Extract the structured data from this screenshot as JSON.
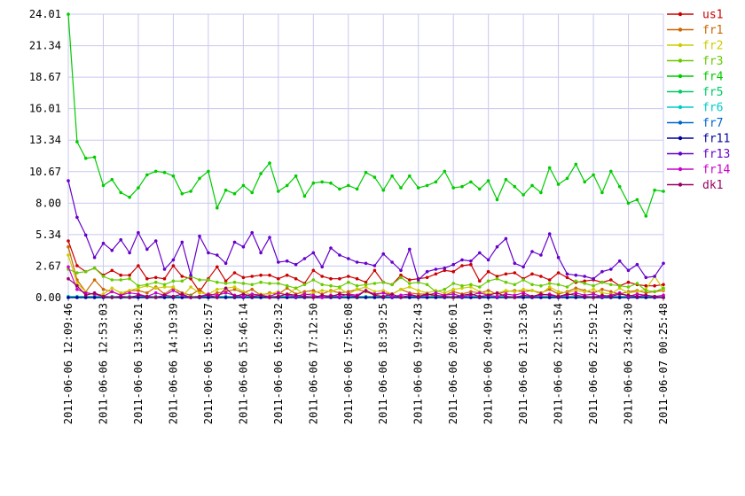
{
  "chart_data": {
    "type": "line",
    "title": "",
    "xlabel": "",
    "ylabel": "",
    "ylim": [
      0,
      24.01
    ],
    "grid": true,
    "legend_position": "right",
    "y_ticks": [
      "0.00",
      "2.67",
      "5.34",
      "8.00",
      "10.67",
      "13.34",
      "16.01",
      "18.67",
      "21.34",
      "24.01"
    ],
    "x_ticks": [
      "2011-06-06 12:09:46",
      "2011-06-06 12:53:03",
      "2011-06-06 13:36:21",
      "2011-06-06 14:19:39",
      "2011-06-06 15:02:57",
      "2011-06-06 15:46:14",
      "2011-06-06 16:29:32",
      "2011-06-06 17:12:50",
      "2011-06-06 17:56:08",
      "2011-06-06 18:39:25",
      "2011-06-06 19:22:43",
      "2011-06-06 20:06:01",
      "2011-06-06 20:49:19",
      "2011-06-06 21:32:36",
      "2011-06-06 22:15:54",
      "2011-06-06 22:59:12",
      "2011-06-06 23:42:30",
      "2011-06-07 00:25:48"
    ],
    "x_range": [
      "2011-06-06 12:09:46",
      "2011-06-07 00:25:48"
    ],
    "series": [
      {
        "name": "us1",
        "color": "#cc0000",
        "values": [
          4.8,
          2.7,
          2.2,
          2.5,
          1.9,
          2.3,
          1.9,
          1.9,
          2.7,
          1.6,
          1.7,
          1.6,
          2.7,
          1.8,
          1.6,
          0.5,
          1.6,
          2.6,
          1.4,
          2.1,
          1.7,
          1.8,
          1.9,
          1.9,
          1.6,
          1.9,
          1.6,
          1.2,
          2.3,
          1.8,
          1.6,
          1.6,
          1.8,
          1.6,
          1.3,
          2.3,
          1.3,
          1.1,
          1.9,
          1.5,
          1.6,
          1.7,
          2.0,
          2.3,
          2.2,
          2.7,
          2.8,
          1.4,
          2.2,
          1.8,
          2.0,
          2.1,
          1.6,
          2.0,
          1.8,
          1.5,
          2.1,
          1.7,
          1.3,
          1.4,
          1.5,
          1.3,
          1.5,
          1.0,
          1.3,
          1.1,
          1.0,
          1.0,
          1.1
        ]
      },
      {
        "name": "fr1",
        "color": "#cc6600",
        "values": [
          4.3,
          1.5,
          0.5,
          1.5,
          0.7,
          0.5,
          0.2,
          0.6,
          0.6,
          0.4,
          0.9,
          0.3,
          0.8,
          0.4,
          0.2,
          0.7,
          0.1,
          0.4,
          0.5,
          0.7,
          0.4,
          0.7,
          0.2,
          0.4,
          0.3,
          0.8,
          0.3,
          0.5,
          0.6,
          0.3,
          0.6,
          0.4,
          0.5,
          0.7,
          0.5,
          0.2,
          0.4,
          0.3,
          0.7,
          0.4,
          0.3,
          0.3,
          0.1,
          0.2,
          0.5,
          0.3,
          0.5,
          0.4,
          0.6,
          0.3,
          0.5,
          0.6,
          0.5,
          0.6,
          0.4,
          0.7,
          0.3,
          0.5,
          0.8,
          0.6,
          0.4,
          0.7,
          0.5,
          0.3,
          0.5,
          0.6,
          0.4,
          0.5,
          0.6
        ]
      },
      {
        "name": "fr2",
        "color": "#cccc00",
        "values": [
          3.6,
          1.2,
          0.5,
          0.2,
          0.3,
          0.8,
          0.4,
          0.6,
          0.8,
          1.0,
          0.8,
          0.9,
          0.9,
          0.1,
          0.9,
          0.4,
          0.3,
          0.7,
          0.8,
          0.9,
          0.5,
          0.2,
          0.3,
          0.3,
          0.5,
          0.2,
          0.8,
          0.2,
          0.4,
          0.6,
          0.5,
          0.8,
          0.3,
          0.7,
          0.9,
          0.5,
          0.6,
          0.3,
          0.7,
          0.9,
          0.6,
          0.4,
          0.6,
          0.4,
          0.7,
          0.8,
          0.9,
          0.5,
          0.3,
          0.4,
          0.6,
          0.5,
          0.7,
          0.6,
          0.3,
          0.9,
          0.5,
          0.4,
          0.6,
          0.5,
          0.7,
          0.4,
          0.3,
          0.8,
          0.4,
          0.5,
          0.7,
          1.8,
          0.7
        ]
      },
      {
        "name": "fr3",
        "color": "#66cc00",
        "values": [
          2.4,
          2.1,
          2.2,
          2.5,
          1.8,
          1.5,
          1.5,
          1.6,
          1.0,
          1.1,
          1.3,
          1.1,
          1.4,
          1.4,
          1.8,
          1.5,
          1.5,
          1.3,
          1.2,
          1.3,
          1.2,
          1.1,
          1.3,
          1.2,
          1.2,
          1.0,
          0.8,
          1.1,
          1.5,
          1.1,
          1.0,
          0.9,
          1.3,
          1.0,
          1.1,
          1.2,
          1.3,
          1.1,
          1.7,
          1.2,
          1.3,
          1.1,
          0.5,
          0.7,
          1.2,
          1.0,
          1.1,
          0.9,
          1.4,
          1.6,
          1.3,
          1.1,
          1.5,
          1.1,
          1.0,
          1.2,
          1.1,
          0.9,
          1.4,
          1.2,
          1.0,
          1.3,
          1.1,
          1.0,
          0.9,
          1.2,
          0.6,
          0.5,
          0.8
        ]
      },
      {
        "name": "fr4",
        "color": "#00cc00",
        "values": [
          24.0,
          13.2,
          11.8,
          11.9,
          9.5,
          10.0,
          8.9,
          8.5,
          9.3,
          10.4,
          10.7,
          10.6,
          10.3,
          8.8,
          9.0,
          10.1,
          10.7,
          7.6,
          9.1,
          8.8,
          9.5,
          8.9,
          10.5,
          11.4,
          9.0,
          9.5,
          10.3,
          8.6,
          9.7,
          9.8,
          9.7,
          9.2,
          9.5,
          9.2,
          10.6,
          10.2,
          9.1,
          10.3,
          9.3,
          10.3,
          9.3,
          9.5,
          9.8,
          10.7,
          9.3,
          9.4,
          9.8,
          9.2,
          9.9,
          8.3,
          10.0,
          9.4,
          8.7,
          9.5,
          8.9,
          11.0,
          9.6,
          10.1,
          11.3,
          9.8,
          10.4,
          8.9,
          10.7,
          9.4,
          8.0,
          8.3,
          6.9,
          9.1,
          9.0
        ]
      },
      {
        "name": "fr5",
        "color": "#00cc66",
        "values": [
          0.1,
          0.1,
          0.1,
          0.1,
          0.1,
          0.1,
          0.1,
          0.1,
          0.1,
          0.1,
          0.1,
          0.1,
          0.1,
          0.1,
          0.1,
          0.1,
          0.1,
          0.1,
          0.1,
          0.1,
          0.1,
          0.1,
          0.1,
          0.1,
          0.1,
          0.1,
          0.1,
          0.1,
          0.1,
          0.1,
          0.1,
          0.1,
          0.1,
          0.1,
          0.1,
          0.1,
          0.1,
          0.1,
          0.1,
          0.1,
          0.1,
          0.1,
          0.1,
          0.1,
          0.1,
          0.1,
          0.1,
          0.1,
          0.1,
          0.1,
          0.1,
          0.1,
          0.1,
          0.1,
          0.1,
          0.1,
          0.1,
          0.1,
          0.1,
          0.1,
          0.1,
          0.1,
          0.1,
          0.1,
          0.1,
          0.1,
          0.1,
          0.1,
          0.1
        ]
      },
      {
        "name": "fr6",
        "color": "#00cccc",
        "values": [
          0.05,
          0.05,
          0.05,
          0.05,
          0.05,
          0.05,
          0.05,
          0.05,
          0.05,
          0.05,
          0.05,
          0.05,
          0.05,
          0.05,
          0.05,
          0.05,
          0.05,
          0.05,
          0.05,
          0.05,
          0.05,
          0.05,
          0.05,
          0.05,
          0.05,
          0.05,
          0.05,
          0.05,
          0.05,
          0.05,
          0.05,
          0.05,
          0.05,
          0.05,
          0.05,
          0.05,
          0.05,
          0.05,
          0.05,
          0.05,
          0.05,
          0.05,
          0.05,
          0.05,
          0.05,
          0.05,
          0.05,
          0.05,
          0.05,
          0.05,
          0.05,
          0.05,
          0.05,
          0.05,
          0.05,
          0.05,
          0.05,
          0.05,
          0.05,
          0.05,
          0.05,
          0.05,
          0.05,
          0.05,
          0.05,
          0.05,
          0.05,
          0.05,
          0.05
        ]
      },
      {
        "name": "fr7",
        "color": "#0066cc",
        "values": [
          0.02,
          0.02,
          0.02,
          0.02,
          0.02,
          0.02,
          0.02,
          0.02,
          0.02,
          0.02,
          0.02,
          0.02,
          0.02,
          0.02,
          0.02,
          0.02,
          0.02,
          0.02,
          0.02,
          0.02,
          0.02,
          0.02,
          0.02,
          0.02,
          0.02,
          0.02,
          0.02,
          0.02,
          0.02,
          0.02,
          0.02,
          0.02,
          0.02,
          0.02,
          0.02,
          0.02,
          0.02,
          0.02,
          0.02,
          0.02,
          0.02,
          0.02,
          0.02,
          0.02,
          0.02,
          0.02,
          0.02,
          0.02,
          0.02,
          0.02,
          0.02,
          0.02,
          0.02,
          0.02,
          0.02,
          0.02,
          0.02,
          0.02,
          0.02,
          0.02,
          0.02,
          0.02,
          0.02,
          0.02,
          0.02,
          0.02,
          0.02,
          0.02,
          0.02
        ]
      },
      {
        "name": "fr11",
        "color": "#000099",
        "values": [
          0.0,
          0.0,
          0.0,
          0.0,
          0.0,
          0.0,
          0.0,
          0.0,
          0.0,
          0.0,
          0.0,
          0.0,
          0.0,
          0.0,
          0.0,
          0.0,
          0.0,
          0.0,
          0.0,
          0.0,
          0.0,
          0.0,
          0.0,
          0.0,
          0.0,
          0.0,
          0.0,
          0.0,
          0.0,
          0.0,
          0.0,
          0.0,
          0.0,
          0.0,
          0.0,
          0.0,
          0.0,
          0.0,
          0.0,
          0.0,
          0.0,
          0.0,
          0.0,
          0.0,
          0.0,
          0.0,
          0.0,
          0.0,
          0.0,
          0.0,
          0.0,
          0.0,
          0.0,
          0.0,
          0.0,
          0.0,
          0.0,
          0.0,
          0.0,
          0.0,
          0.0,
          0.0,
          0.0,
          0.0,
          0.0,
          0.0,
          0.0,
          0.0,
          0.0
        ]
      },
      {
        "name": "fr13",
        "color": "#6600cc",
        "values": [
          9.9,
          6.8,
          5.3,
          3.4,
          4.6,
          4.0,
          4.9,
          3.8,
          5.5,
          4.1,
          4.8,
          2.4,
          3.2,
          4.7,
          1.9,
          5.2,
          3.8,
          3.6,
          2.9,
          4.7,
          4.3,
          5.5,
          3.8,
          5.1,
          3.0,
          3.1,
          2.8,
          3.3,
          3.8,
          2.6,
          4.2,
          3.6,
          3.3,
          3.0,
          2.9,
          2.7,
          3.7,
          3.0,
          2.3,
          4.1,
          1.5,
          2.2,
          2.4,
          2.5,
          2.8,
          3.2,
          3.1,
          3.8,
          3.2,
          4.3,
          5.0,
          2.9,
          2.6,
          3.9,
          3.6,
          5.4,
          3.4,
          2.0,
          1.9,
          1.8,
          1.6,
          2.2,
          2.4,
          3.1,
          2.3,
          2.8,
          1.7,
          1.8,
          2.9
        ]
      },
      {
        "name": "fr14",
        "color": "#cc00cc",
        "values": [
          2.6,
          0.7,
          0.4,
          0.3,
          0.1,
          0.5,
          0.2,
          0.4,
          0.3,
          0.1,
          0.4,
          0.2,
          0.6,
          0.2,
          0.0,
          0.1,
          0.3,
          0.2,
          0.4,
          0.2,
          0.1,
          0.3,
          0.2,
          0.1,
          0.4,
          0.2,
          0.1,
          0.3,
          0.2,
          0.0,
          0.2,
          0.1,
          0.3,
          0.2,
          0.6,
          0.3,
          0.4,
          0.1,
          0.2,
          0.3,
          0.1,
          0.2,
          0.4,
          0.2,
          0.3,
          0.1,
          0.2,
          0.4,
          0.2,
          0.1,
          0.3,
          0.2,
          0.4,
          0.1,
          0.2,
          0.3,
          0.1,
          0.2,
          0.4,
          0.2,
          0.3,
          0.1,
          0.2,
          0.4,
          0.1,
          0.3,
          0.2,
          0.1,
          0.2
        ]
      },
      {
        "name": "dk1",
        "color": "#990066",
        "values": [
          1.6,
          1.0,
          0.2,
          0.4,
          0.1,
          0.0,
          0.1,
          0.0,
          0.2,
          0.1,
          0.0,
          0.2,
          0.1,
          0.3,
          0.0,
          0.1,
          0.2,
          0.0,
          0.8,
          0.1,
          0.3,
          0.1,
          0.2,
          0.0,
          0.1,
          0.3,
          0.2,
          0.1,
          0.0,
          0.2,
          0.1,
          0.3,
          0.2,
          0.1,
          0.6,
          0.2,
          0.1,
          0.3,
          0.0,
          0.2,
          0.1,
          0.3,
          0.2,
          0.1,
          0.0,
          0.2,
          0.3,
          0.1,
          0.2,
          0.4,
          0.1,
          0.0,
          0.2,
          0.1,
          0.3,
          0.2,
          0.1,
          0.3,
          0.2,
          0.1,
          0.0,
          0.2,
          0.1,
          0.3,
          0.2,
          0.1,
          0.2,
          0.1,
          0.0
        ]
      }
    ]
  }
}
